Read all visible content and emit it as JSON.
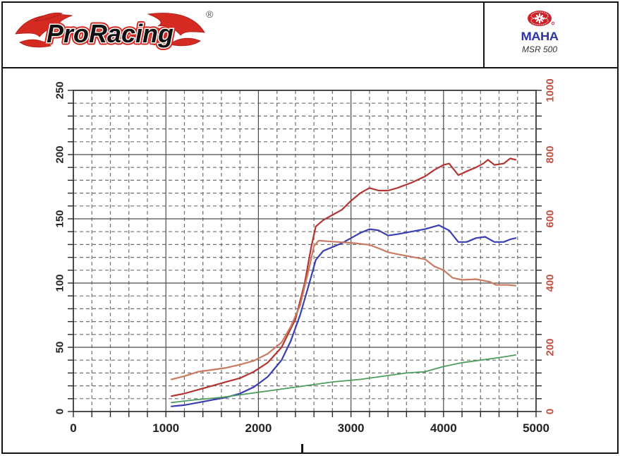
{
  "header": {
    "brand": {
      "name": "ProRacing",
      "registered": "®"
    },
    "device": {
      "wordmark": "MAHA",
      "model": "MSR 500"
    }
  },
  "colors": {
    "frame": "#141414",
    "grid_major": "#4c4c4c",
    "grid_minor": "#707070",
    "axis_left_text": "#222222",
    "axis_right_text": "#c14f3f",
    "logo_red": "#d42a22",
    "maha_blue": "#2b35a5",
    "maha_red": "#cc2229"
  },
  "chart_data": {
    "type": "line",
    "title": "",
    "xlabel": "",
    "ylabel_left": "",
    "ylabel_right": "",
    "grid": "on",
    "legend": "none",
    "x_axis": {
      "min": 0,
      "max": 5000,
      "major_step": 1000,
      "minor_step": 200,
      "labels": [
        "0",
        "1000",
        "2000",
        "3000",
        "4000",
        "5000"
      ]
    },
    "y_left": {
      "min": 0,
      "max": 250,
      "major_step": 50,
      "minor_step": 10,
      "labels": [
        "0",
        "50",
        "100",
        "150",
        "200",
        "250"
      ]
    },
    "y_right": {
      "min": 0,
      "max": 1000,
      "major_step": 200,
      "labels": [
        "0",
        "200",
        "400",
        "600",
        "800",
        "1000"
      ]
    },
    "series": [
      {
        "name": "red-upper-curve",
        "axis": "left",
        "color": "#b23531",
        "width": 2.2,
        "points": [
          [
            1060,
            12
          ],
          [
            1200,
            14
          ],
          [
            1350,
            17
          ],
          [
            1500,
            20
          ],
          [
            1650,
            23
          ],
          [
            1800,
            26
          ],
          [
            1950,
            31
          ],
          [
            2100,
            38
          ],
          [
            2250,
            50
          ],
          [
            2400,
            72
          ],
          [
            2500,
            100
          ],
          [
            2570,
            128
          ],
          [
            2620,
            144
          ],
          [
            2700,
            149
          ],
          [
            2800,
            153
          ],
          [
            2900,
            157
          ],
          [
            3000,
            164
          ],
          [
            3100,
            170
          ],
          [
            3200,
            174
          ],
          [
            3300,
            172
          ],
          [
            3400,
            172
          ],
          [
            3500,
            174
          ],
          [
            3650,
            178
          ],
          [
            3800,
            183
          ],
          [
            3900,
            188
          ],
          [
            4000,
            192
          ],
          [
            4060,
            193
          ],
          [
            4160,
            184
          ],
          [
            4250,
            187
          ],
          [
            4350,
            190
          ],
          [
            4430,
            193
          ],
          [
            4480,
            196
          ],
          [
            4550,
            192
          ],
          [
            4650,
            193
          ],
          [
            4720,
            197
          ],
          [
            4780,
            196
          ]
        ]
      },
      {
        "name": "blue-curve",
        "axis": "left",
        "color": "#3a3eae",
        "width": 2.2,
        "points": [
          [
            1060,
            4
          ],
          [
            1200,
            5
          ],
          [
            1350,
            7
          ],
          [
            1500,
            9
          ],
          [
            1650,
            11
          ],
          [
            1800,
            14
          ],
          [
            1950,
            19
          ],
          [
            2100,
            27
          ],
          [
            2250,
            40
          ],
          [
            2350,
            55
          ],
          [
            2450,
            75
          ],
          [
            2550,
            100
          ],
          [
            2620,
            118
          ],
          [
            2700,
            125
          ],
          [
            2800,
            128
          ],
          [
            2900,
            131
          ],
          [
            3000,
            135
          ],
          [
            3100,
            139
          ],
          [
            3200,
            142
          ],
          [
            3300,
            141
          ],
          [
            3400,
            137
          ],
          [
            3500,
            138
          ],
          [
            3650,
            140
          ],
          [
            3800,
            142
          ],
          [
            3950,
            145
          ],
          [
            4060,
            141
          ],
          [
            4160,
            132
          ],
          [
            4250,
            132
          ],
          [
            4350,
            135
          ],
          [
            4450,
            136
          ],
          [
            4550,
            132
          ],
          [
            4650,
            132
          ],
          [
            4720,
            134
          ],
          [
            4780,
            135
          ]
        ]
      },
      {
        "name": "orange-curve",
        "axis": "right",
        "color": "#c97a62",
        "width": 2.2,
        "points": [
          [
            1060,
            100
          ],
          [
            1200,
            110
          ],
          [
            1350,
            124
          ],
          [
            1500,
            130
          ],
          [
            1650,
            136
          ],
          [
            1800,
            146
          ],
          [
            1950,
            158
          ],
          [
            2100,
            180
          ],
          [
            2250,
            215
          ],
          [
            2350,
            265
          ],
          [
            2450,
            330
          ],
          [
            2550,
            450
          ],
          [
            2600,
            515
          ],
          [
            2650,
            532
          ],
          [
            2750,
            530
          ],
          [
            2900,
            527
          ],
          [
            3050,
            524
          ],
          [
            3200,
            519
          ],
          [
            3300,
            508
          ],
          [
            3400,
            496
          ],
          [
            3500,
            490
          ],
          [
            3650,
            482
          ],
          [
            3800,
            474
          ],
          [
            3900,
            452
          ],
          [
            4000,
            440
          ],
          [
            4100,
            416
          ],
          [
            4200,
            410
          ],
          [
            4350,
            412
          ],
          [
            4500,
            404
          ],
          [
            4570,
            394
          ],
          [
            4700,
            394
          ],
          [
            4780,
            392
          ]
        ]
      },
      {
        "name": "green-curve",
        "axis": "left",
        "color": "#4d9d5f",
        "width": 1.8,
        "points": [
          [
            1060,
            7
          ],
          [
            1300,
            9
          ],
          [
            1600,
            11
          ],
          [
            1900,
            14
          ],
          [
            2200,
            17
          ],
          [
            2500,
            20
          ],
          [
            2800,
            23
          ],
          [
            3100,
            25
          ],
          [
            3400,
            28
          ],
          [
            3600,
            30
          ],
          [
            3800,
            31
          ],
          [
            3900,
            33
          ],
          [
            4000,
            35
          ],
          [
            4200,
            38
          ],
          [
            4400,
            40
          ],
          [
            4600,
            42
          ],
          [
            4780,
            44
          ]
        ]
      }
    ]
  }
}
